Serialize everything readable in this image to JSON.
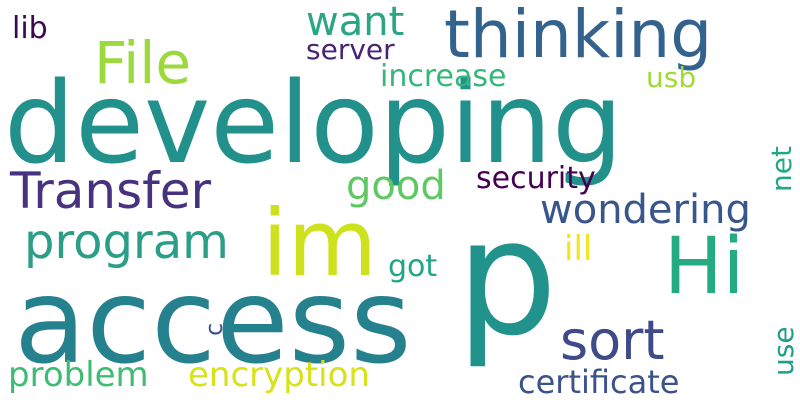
{
  "words": {
    "developing": "developing",
    "access": "access",
    "p": "p",
    "im": "im",
    "thinking": "thinking",
    "hi": "Hi",
    "transfer": "Transfer",
    "program": "program",
    "file": "File",
    "sort": "sort",
    "wondering": "wondering",
    "want": "want",
    "good": "good",
    "problem": "problem",
    "encryption": "encryption",
    "certificate": "certificate",
    "security": "security",
    "increase": "increase",
    "server": "server",
    "got": "got",
    "ill": "ill",
    "usb": "usb",
    "lib": "lib",
    "net": "net",
    "use": "use",
    "c": "c"
  }
}
